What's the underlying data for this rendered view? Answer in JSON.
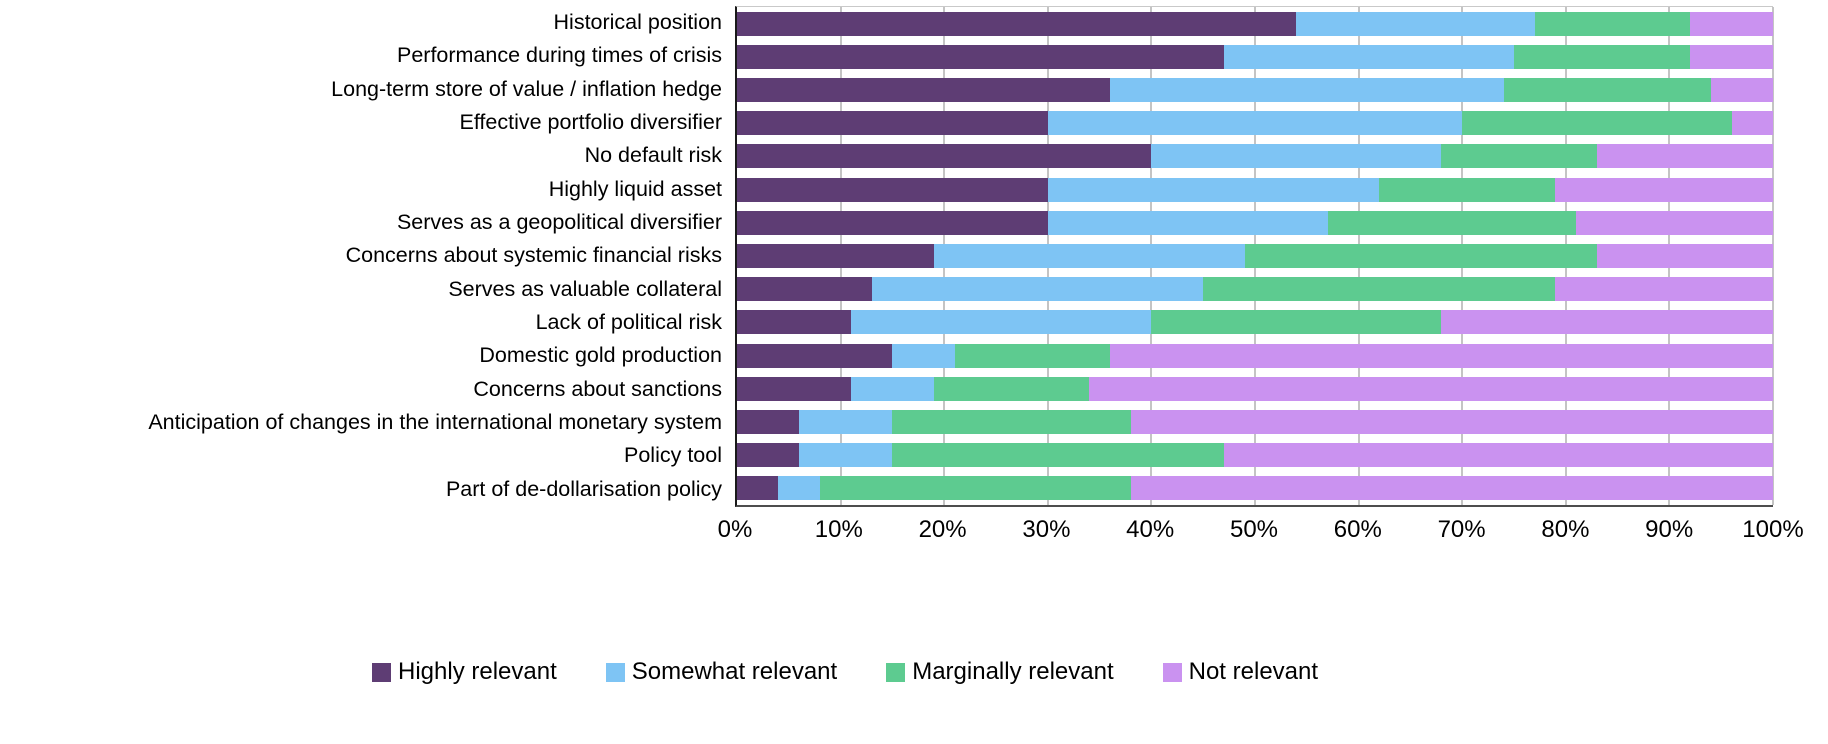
{
  "chart_data": {
    "type": "bar",
    "stacked": true,
    "orientation": "horizontal",
    "title": "",
    "xlabel": "",
    "ylabel": "",
    "xlim": [
      0,
      100
    ],
    "grid": true,
    "legend_position": "bottom",
    "x_tick_labels": [
      "0%",
      "10%",
      "20%",
      "30%",
      "40%",
      "50%",
      "60%",
      "70%",
      "80%",
      "90%",
      "100%"
    ],
    "categories": [
      "Historical position",
      "Performance during times of crisis",
      "Long-term store of value / inflation hedge",
      "Effective portfolio diversifier",
      "No default risk",
      "Highly liquid asset",
      "Serves as a geopolitical diversifier",
      "Concerns about systemic financial risks",
      "Serves as valuable collateral",
      "Lack of political risk",
      "Domestic gold production",
      "Concerns about sanctions",
      "Anticipation of changes in the international monetary system",
      "Policy tool",
      "Part of de-dollarisation policy"
    ],
    "series": [
      {
        "name": "Highly relevant",
        "color": "#5E3D74",
        "values": [
          54,
          47,
          36,
          30,
          40,
          30,
          30,
          19,
          13,
          11,
          15,
          11,
          6,
          6,
          4
        ]
      },
      {
        "name": "Somewhat relevant",
        "color": "#7EC4F4",
        "values": [
          23,
          28,
          38,
          40,
          28,
          32,
          27,
          30,
          32,
          29,
          6,
          8,
          9,
          9,
          4
        ]
      },
      {
        "name": "Marginally relevant",
        "color": "#5DCB90",
        "values": [
          15,
          17,
          20,
          26,
          15,
          17,
          24,
          34,
          34,
          28,
          15,
          15,
          23,
          32,
          30
        ]
      },
      {
        "name": "Not relevant",
        "color": "#CA92F0",
        "values": [
          8,
          8,
          6,
          4,
          17,
          21,
          19,
          17,
          21,
          32,
          64,
          66,
          62,
          53,
          62
        ]
      }
    ]
  },
  "style_colors": {
    "gridline": "#c4c4c4",
    "y_axis": "#1a1a1a",
    "x_axis": "#4d4d4d",
    "text": "#000000",
    "background": "#ffffff"
  }
}
